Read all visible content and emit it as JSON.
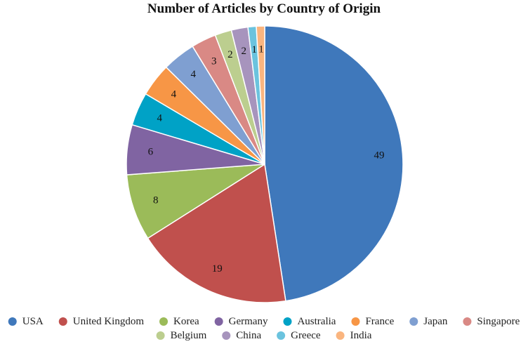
{
  "chart_data": {
    "type": "pie",
    "title": "Number of Articles by Country of Origin",
    "legend_position": "bottom",
    "slices": [
      {
        "label": "USA",
        "value": 49,
        "color": "#3F78BB"
      },
      {
        "label": "United Kingdom",
        "value": 19,
        "color": "#C0504D"
      },
      {
        "label": "Korea",
        "value": 8,
        "color": "#9BBB59"
      },
      {
        "label": "Germany",
        "value": 6,
        "color": "#8064A2"
      },
      {
        "label": "Australia",
        "value": 4,
        "color": "#00A2C6"
      },
      {
        "label": "France",
        "value": 4,
        "color": "#F79646"
      },
      {
        "label": "Japan",
        "value": 4,
        "color": "#7F9FD1"
      },
      {
        "label": "Singapore",
        "value": 3,
        "color": "#D98985"
      },
      {
        "label": "Belgium",
        "value": 2,
        "color": "#BCCE8F"
      },
      {
        "label": "China",
        "value": 2,
        "color": "#A794BD"
      },
      {
        "label": "Greece",
        "value": 1,
        "color": "#6BC3DE"
      },
      {
        "label": "India",
        "value": 1,
        "color": "#FAB57F"
      }
    ]
  }
}
